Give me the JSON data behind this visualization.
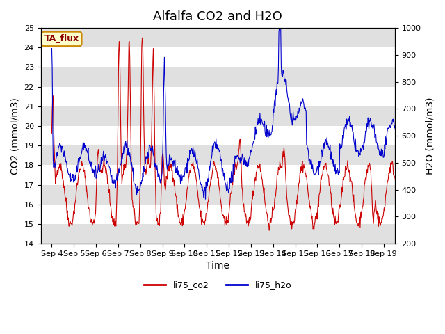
{
  "title": "Alfalfa CO2 and H2O",
  "xlabel": "Time",
  "ylabel_left": "CO2 (mmol/m3)",
  "ylabel_right": "H2O (mmol/m3)",
  "ylim_left": [
    14.0,
    25.0
  ],
  "ylim_right": [
    200,
    1000
  ],
  "yticks_left": [
    14.0,
    15.0,
    16.0,
    17.0,
    18.0,
    19.0,
    20.0,
    21.0,
    22.0,
    23.0,
    24.0,
    25.0
  ],
  "yticks_right": [
    200,
    300,
    400,
    500,
    600,
    700,
    800,
    900,
    1000
  ],
  "date_labels": [
    "Sep 4",
    "Sep 5",
    "Sep 6",
    "Sep 7",
    "Sep 8",
    "Sep 9",
    "Sep 10",
    "Sep 11",
    "Sep 12",
    "Sep 13",
    "Sep 14",
    "Sep 15",
    "Sep 16",
    "Sep 17",
    "Sep 18",
    "Sep 19"
  ],
  "color_co2": "#cc0000",
  "color_h2o": "#0000cc",
  "label_co2": "li75_co2",
  "label_h2o": "li75_h2o",
  "annotation_text": "TA_flux",
  "annotation_bg": "#ffffcc",
  "annotation_border": "#cc8800",
  "bg_band_color": "#e0e0e0",
  "title_fontsize": 13,
  "axis_label_fontsize": 10,
  "tick_fontsize": 8,
  "legend_fontsize": 9
}
